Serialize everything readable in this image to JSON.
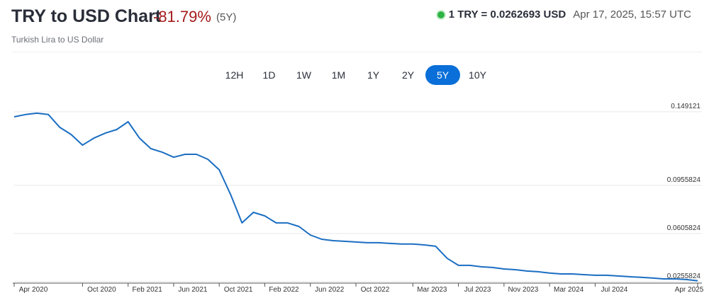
{
  "header": {
    "title": "TRY to USD Chart",
    "change": "-81.79%",
    "period": "(5Y)",
    "subtitle": "Turkish Lira to US Dollar",
    "rate": "1 TRY = 0.0262693 USD",
    "timestamp": "Apr 17, 2025, 15:57 UTC"
  },
  "range_buttons": {
    "items": [
      "12H",
      "1D",
      "1W",
      "1M",
      "1Y",
      "2Y",
      "5Y",
      "10Y"
    ],
    "active": "5Y"
  },
  "chart_data": {
    "type": "line",
    "color": "#1b6ec2",
    "x": [
      "2020-04",
      "2020-05",
      "2020-06",
      "2020-07",
      "2020-08",
      "2020-09",
      "2020-10",
      "2020-11",
      "2020-12",
      "2021-01",
      "2021-02",
      "2021-03",
      "2021-04",
      "2021-05",
      "2021-06",
      "2021-07",
      "2021-08",
      "2021-09",
      "2021-10",
      "2021-11",
      "2021-12",
      "2022-01",
      "2022-02",
      "2022-03",
      "2022-04",
      "2022-05",
      "2022-06",
      "2022-07",
      "2022-08",
      "2022-09",
      "2022-10",
      "2022-11",
      "2022-12",
      "2023-01",
      "2023-02",
      "2023-03",
      "2023-04",
      "2023-05",
      "2023-06",
      "2023-07",
      "2023-08",
      "2023-09",
      "2023-10",
      "2023-11",
      "2023-12",
      "2024-01",
      "2024-02",
      "2024-03",
      "2024-04",
      "2024-05",
      "2024-06",
      "2024-07",
      "2024-08",
      "2024-09",
      "2024-10",
      "2024-11",
      "2024-12",
      "2025-01",
      "2025-02",
      "2025-03",
      "2025-04"
    ],
    "values": [
      0.1455,
      0.1471,
      0.1481,
      0.1471,
      0.1378,
      0.1326,
      0.1249,
      0.13,
      0.1336,
      0.1362,
      0.1419,
      0.13,
      0.1223,
      0.1197,
      0.1161,
      0.1182,
      0.1182,
      0.1146,
      0.1069,
      0.0889,
      0.0683,
      0.076,
      0.0734,
      0.0683,
      0.0683,
      0.0657,
      0.0595,
      0.0564,
      0.0554,
      0.0549,
      0.0544,
      0.0539,
      0.0539,
      0.0534,
      0.0529,
      0.0529,
      0.0523,
      0.0513,
      0.0426,
      0.0374,
      0.0374,
      0.0364,
      0.0359,
      0.0348,
      0.0343,
      0.0333,
      0.0328,
      0.0318,
      0.0312,
      0.0312,
      0.0307,
      0.0302,
      0.0302,
      0.0297,
      0.0292,
      0.0287,
      0.0282,
      0.0276,
      0.0276,
      0.0271,
      0.0262693
    ],
    "xlim": [
      "2020-04",
      "2025-04"
    ],
    "xticks": [
      {
        "value": "2020-04",
        "label": "Apr 2020"
      },
      {
        "value": "2020-10",
        "label": "Oct 2020"
      },
      {
        "value": "2021-02",
        "label": "Feb 2021"
      },
      {
        "value": "2021-06",
        "label": "Jun 2021"
      },
      {
        "value": "2021-10",
        "label": "Oct 2021"
      },
      {
        "value": "2022-02",
        "label": "Feb 2022"
      },
      {
        "value": "2022-06",
        "label": "Jun 2022"
      },
      {
        "value": "2022-10",
        "label": "Oct 2022"
      },
      {
        "value": "2023-03",
        "label": "Mar 2023"
      },
      {
        "value": "2023-07",
        "label": "Jul 2023"
      },
      {
        "value": "2023-11",
        "label": "Nov 2023"
      },
      {
        "value": "2024-03",
        "label": "Mar 2024"
      },
      {
        "value": "2024-07",
        "label": "Jul 2024"
      },
      {
        "value": "2025-04",
        "label": "Apr 2025"
      }
    ],
    "ylim": [
      0.0245,
      0.1532
    ],
    "yticks": [
      0.0255824,
      0.0605824,
      0.0955824,
      0.149121
    ],
    "grid": true
  }
}
